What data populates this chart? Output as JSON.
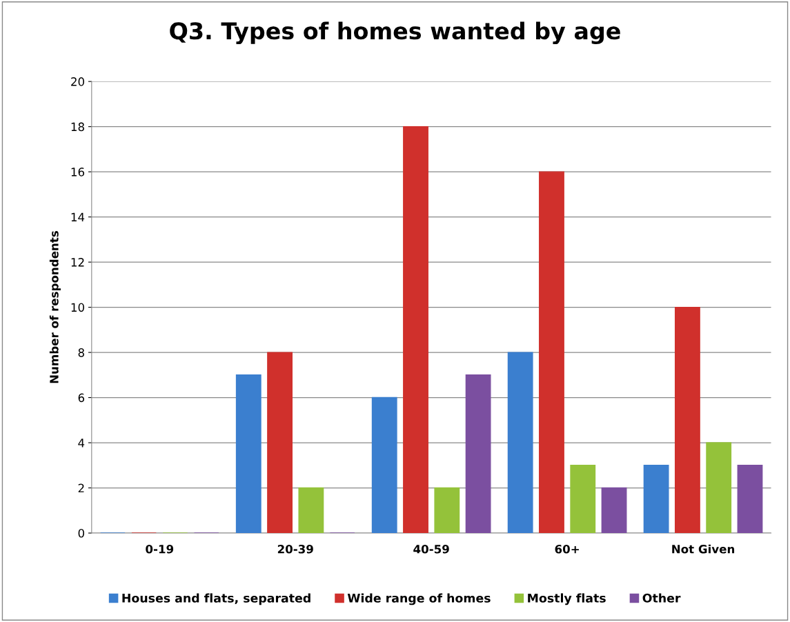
{
  "chart_data": {
    "type": "bar",
    "title": "Q3. Types of homes wanted by age",
    "ylabel": "Number of respondents",
    "categories": [
      "0-19",
      "20-39",
      "40-59",
      "60+",
      "Not Given"
    ],
    "series": [
      {
        "name": "Houses and flats, separated",
        "color": "#3b7fcf",
        "values": [
          0,
          7,
          6,
          8,
          3
        ]
      },
      {
        "name": "Wide range of homes",
        "color": "#d0302c",
        "values": [
          0,
          8,
          18,
          16,
          10
        ]
      },
      {
        "name": "Mostly flats",
        "color": "#94c23a",
        "values": [
          0,
          2,
          2,
          3,
          4
        ]
      },
      {
        "name": "Other",
        "color": "#7b4fa0",
        "values": [
          0,
          0,
          7,
          2,
          3
        ]
      }
    ],
    "ylim": [
      0,
      20
    ],
    "yticks": [
      0,
      2,
      4,
      6,
      8,
      10,
      12,
      14,
      16,
      18,
      20
    ],
    "grid": "y",
    "legend": "bottom"
  }
}
